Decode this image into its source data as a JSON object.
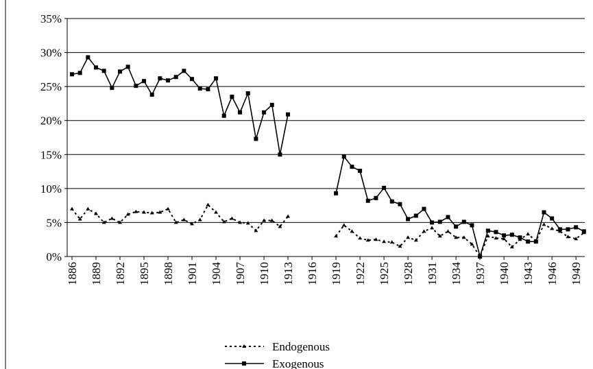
{
  "chart_data": {
    "type": "line",
    "x": [
      1886,
      1887,
      1888,
      1889,
      1890,
      1891,
      1892,
      1893,
      1894,
      1895,
      1896,
      1897,
      1898,
      1899,
      1900,
      1901,
      1902,
      1903,
      1904,
      1905,
      1906,
      1907,
      1908,
      1909,
      1910,
      1911,
      1912,
      1913,
      1914,
      1915,
      1916,
      1917,
      1918,
      1919,
      1920,
      1921,
      1922,
      1923,
      1924,
      1925,
      1926,
      1927,
      1928,
      1929,
      1930,
      1931,
      1932,
      1933,
      1934,
      1935,
      1936,
      1937,
      1938,
      1939,
      1940,
      1941,
      1942,
      1943,
      1944,
      1945,
      1946,
      1947,
      1948,
      1949,
      1950
    ],
    "series": [
      {
        "name": "Endogenous",
        "color": "#000000",
        "dash": true,
        "marker": "triangle",
        "values": [
          7.0,
          5.5,
          7.0,
          6.3,
          5.0,
          5.6,
          5.0,
          6.2,
          6.6,
          6.5,
          6.4,
          6.5,
          7.0,
          5.0,
          5.4,
          4.8,
          5.4,
          7.6,
          6.5,
          5.1,
          5.6,
          5.0,
          4.9,
          3.8,
          5.3,
          5.3,
          4.4,
          5.9,
          null,
          null,
          null,
          null,
          null,
          3.0,
          4.6,
          3.7,
          2.7,
          2.4,
          2.5,
          2.2,
          2.1,
          1.5,
          2.8,
          2.4,
          3.7,
          4.2,
          3.0,
          3.7,
          2.8,
          2.8,
          1.8,
          0,
          3.0,
          2.7,
          2.6,
          1.4,
          2.5,
          3.3,
          2.3,
          4.7,
          4.1,
          3.7,
          2.9,
          2.6,
          3.5
        ]
      },
      {
        "name": "Exogenous",
        "color": "#000000",
        "dash": false,
        "marker": "square",
        "values": [
          26.8,
          27.0,
          29.3,
          27.8,
          27.3,
          24.8,
          27.2,
          27.9,
          25.1,
          25.8,
          23.8,
          26.2,
          25.9,
          26.4,
          27.3,
          26.1,
          24.7,
          24.6,
          26.2,
          20.7,
          23.5,
          21.2,
          24.0,
          17.3,
          21.2,
          22.3,
          15.0,
          20.9,
          null,
          null,
          null,
          null,
          null,
          9.3,
          14.7,
          13.2,
          12.6,
          8.2,
          8.6,
          10.1,
          8.1,
          7.7,
          5.5,
          6.0,
          7.0,
          5.0,
          5.1,
          5.8,
          4.4,
          5.1,
          4.6,
          0,
          3.8,
          3.6,
          3.1,
          3.2,
          2.8,
          2.2,
          2.2,
          6.5,
          5.6,
          4.0,
          4.0,
          4.3,
          3.7
        ]
      }
    ],
    "xlim": [
      1885.4,
      1950.1
    ],
    "xticks": [
      1886,
      1889,
      1892,
      1895,
      1898,
      1901,
      1904,
      1907,
      1910,
      1913,
      1916,
      1919,
      1922,
      1925,
      1928,
      1931,
      1934,
      1937,
      1940,
      1943,
      1946,
      1949
    ],
    "ylim": [
      0,
      35
    ],
    "yticks": [
      {
        "value": 0,
        "label": "0%"
      },
      {
        "value": 5,
        "label": "5%"
      },
      {
        "value": 10,
        "label": "10%"
      },
      {
        "value": 15,
        "label": "15%"
      },
      {
        "value": 20,
        "label": "20%"
      },
      {
        "value": 25,
        "label": "25%"
      },
      {
        "value": 30,
        "label": "30%"
      },
      {
        "value": 35,
        "label": "35%"
      }
    ],
    "grid": true
  }
}
